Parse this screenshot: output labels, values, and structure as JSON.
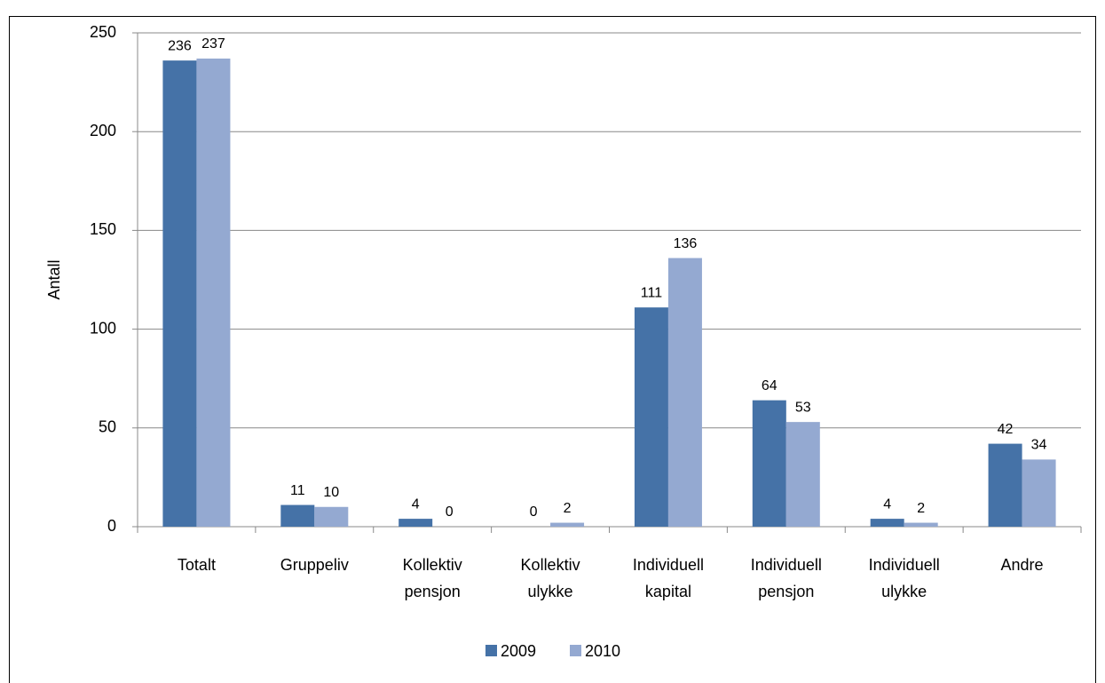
{
  "chart_data": {
    "type": "bar",
    "categories": [
      "Totalt",
      "Gruppeliv",
      "Kollektiv\npensjon",
      "Kollektiv\nulykke",
      "Individuell\nkapital",
      "Individuell\npensjon",
      "Individuell\nulykke",
      "Andre"
    ],
    "series": [
      {
        "name": "2009",
        "color": "#4572a7",
        "values": [
          236,
          11,
          4,
          0,
          111,
          64,
          4,
          42
        ]
      },
      {
        "name": "2010",
        "color": "#94a9d1",
        "values": [
          237,
          10,
          0,
          2,
          136,
          53,
          2,
          34
        ]
      }
    ],
    "y_label": "Antall",
    "ylim": [
      0,
      250
    ],
    "yticks": [
      0,
      50,
      100,
      150,
      200,
      250
    ],
    "grid": true,
    "legend": "bottom"
  }
}
